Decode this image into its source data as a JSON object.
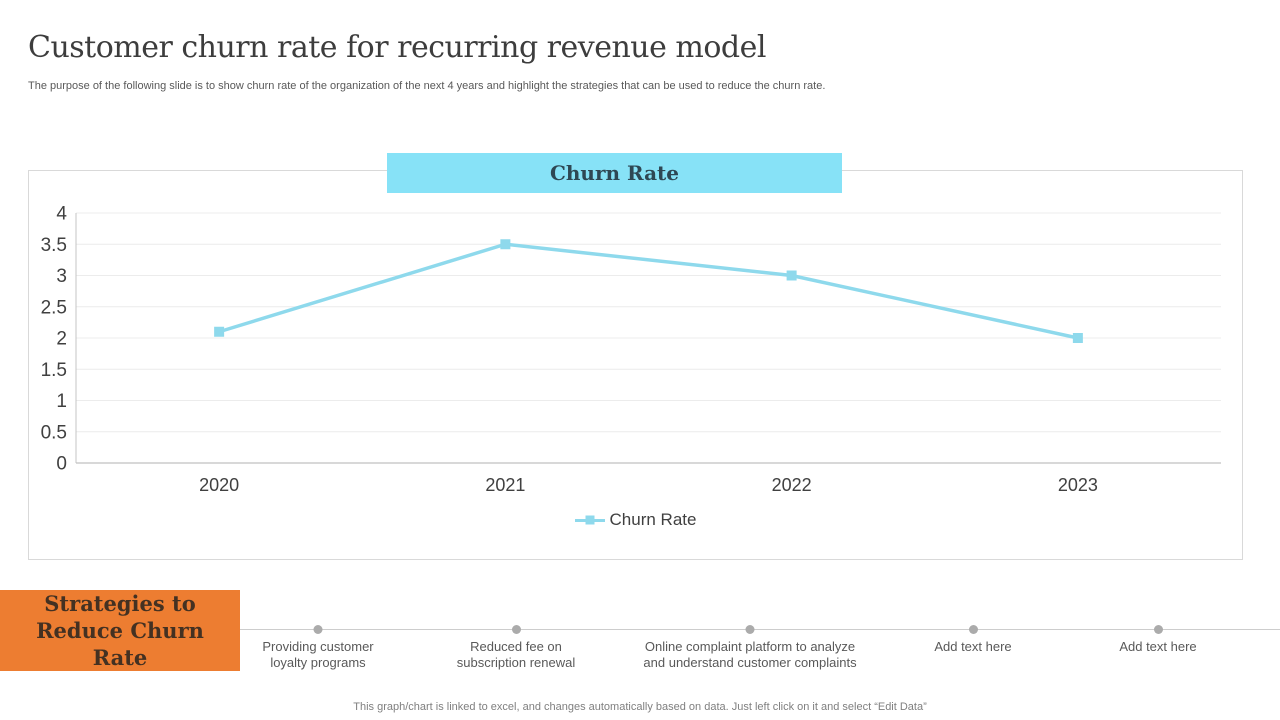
{
  "slide": {
    "title": "Customer churn rate for recurring revenue model",
    "subtitle": "The purpose of the following slide is to show churn rate of the organization of the next 4 years and highlight the strategies that can be used to reduce the churn rate.",
    "footer": "This graph/chart is linked to excel, and changes automatically based on data. Just left click on it and select “Edit Data”"
  },
  "chart_header": {
    "label": "Churn Rate"
  },
  "chart_data": {
    "type": "line",
    "title": "Churn Rate",
    "categories": [
      "2020",
      "2021",
      "2022",
      "2023"
    ],
    "series": [
      {
        "name": "Churn Rate",
        "values": [
          2.1,
          3.5,
          3,
          2
        ],
        "marker": "square"
      }
    ],
    "xlabel": "",
    "ylabel": "",
    "ylim": [
      0,
      4
    ],
    "ytick_step": 0.5,
    "grid": true,
    "legend_position": "bottom"
  },
  "strategies": {
    "heading": "Strategies to Reduce Churn Rate",
    "items": [
      {
        "label": "Providing customer loyalty programs"
      },
      {
        "label": "Reduced fee on subscription renewal"
      },
      {
        "label": "Online complaint platform to analyze and understand customer complaints"
      },
      {
        "label": "Add text here"
      },
      {
        "label": "Add text here"
      }
    ]
  },
  "colors": {
    "series_line": "#8ed9ec",
    "chart_header_fill": "#87e2f7",
    "chart_header_text": "#2e4754",
    "strategies_fill": "#ed7d31",
    "strategies_text": "#443122",
    "gridline": "#ececec",
    "timeline_dot": "#ababab"
  }
}
